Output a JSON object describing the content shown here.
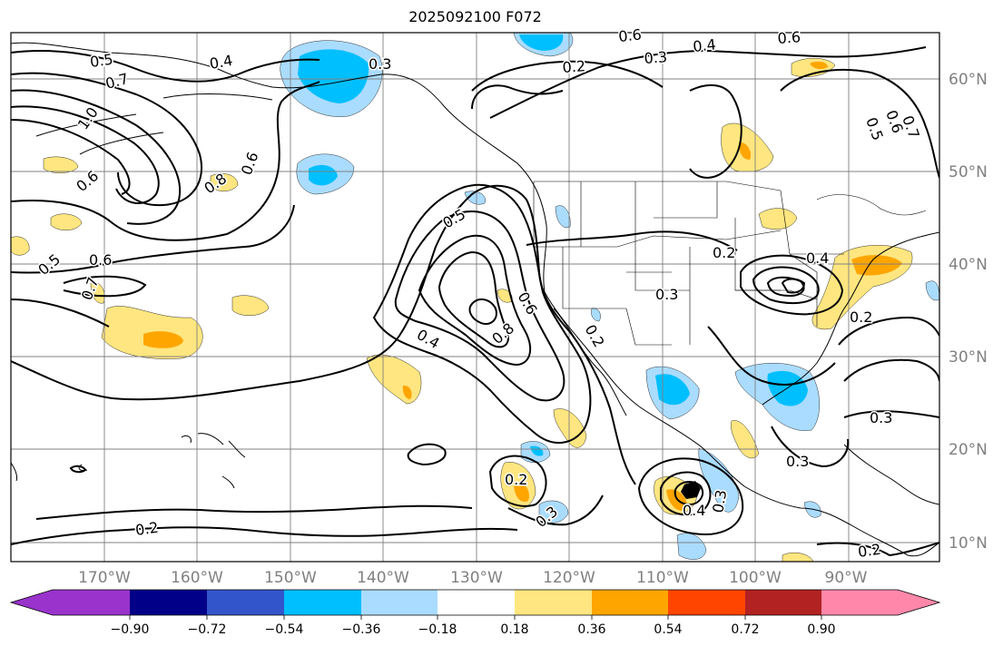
{
  "title": "2025092100 F072",
  "lon_labels": [
    "170°W",
    "160°W",
    "150°W",
    "140°W",
    "130°W",
    "120°W",
    "110°W",
    "100°W",
    "90°W"
  ],
  "lat_labels": [
    "60°N",
    "50°N",
    "40°N",
    "30°N",
    "20°N",
    "10°N"
  ],
  "colorbar": {
    "tick_labels": [
      "−0.90",
      "−0.72",
      "−0.54",
      "−0.36",
      "−0.18",
      "0.18",
      "0.36",
      "0.54",
      "0.72",
      "0.90"
    ],
    "colors": [
      "#9933cc",
      "#000088",
      "#3355cc",
      "#00bfff",
      "#aadcff",
      "#ffffff",
      "#ffe680",
      "#ffa500",
      "#ff4500",
      "#b22222",
      "#ff88aa"
    ]
  },
  "contour_labels": [
    "0.5",
    "0.4",
    "0.3",
    "0.6",
    "0.4",
    "0.6",
    "0.7",
    "1.0",
    "0.6",
    "0.8",
    "0.6",
    "0.2",
    "0.3",
    "0.5",
    "0.6",
    "0.7",
    "0.8",
    "0.6",
    "0.4",
    "0.2",
    "0.3",
    "0.2",
    "0.4",
    "0.5",
    "0.2",
    "0.5",
    "0.6",
    "0.7",
    "0.3",
    "0.3",
    "0.2",
    "0.3",
    "0.3",
    "0.4",
    "0.2",
    "0.2"
  ],
  "colors": {
    "contour": "#000000",
    "grid": "#808080",
    "positive_light": "#ffe680",
    "positive_mid": "#ffa500",
    "negative_light": "#aadcff",
    "negative_mid": "#00bfff"
  }
}
